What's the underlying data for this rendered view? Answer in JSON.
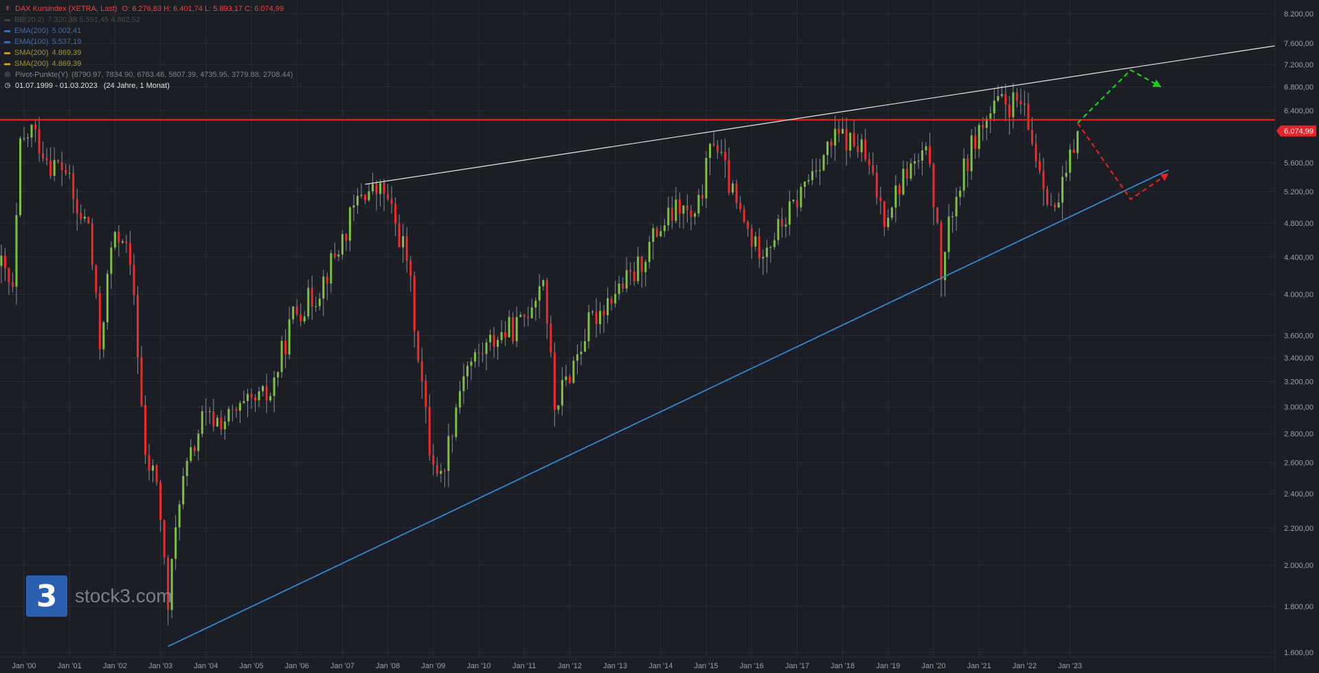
{
  "header": {
    "title": "DAX Kursindex (XETRA, Last)",
    "ohlc": "O: 6.276,83  H: 6.401,74  L: 5.893,17  C: 6.074,99",
    "indicators": [
      {
        "label": "BB(20,2)",
        "values": "7.320,38  5.591,45  4.862,52",
        "color": "#6e6e6e"
      },
      {
        "label": "EMA(200)",
        "values": "5.002,41",
        "color": "#3b6fb0"
      },
      {
        "label": "EMA(100)",
        "values": "5.537,19",
        "color": "#3b6fb0"
      },
      {
        "label": "SMA(200)",
        "values": "4.869,39",
        "color": "#b8a020"
      },
      {
        "label": "SMA(200)",
        "values": "4.869,39",
        "color": "#b8a020"
      }
    ],
    "pivot": {
      "label": "Pivot-Punkte(Y)",
      "values": "(8790.97,  7834.90,  6763.46,  5807.39,  4735.95,  3779.88,  2708.44)"
    },
    "range": "01.07.1999 - 01.03.2023",
    "range_note": "(24 Jahre, 1 Monat)"
  },
  "logo": {
    "mark": "3",
    "text": "stock3.com"
  },
  "chart_data": {
    "type": "candlestick",
    "instrument": "DAX Kursindex (XETRA, Last)",
    "interval": "monthly",
    "yscale": "log",
    "ylim": [
      1560,
      8400
    ],
    "xlim": [
      "1999-07",
      "2023-03"
    ],
    "y_ticks": [
      "1.600,00",
      "1.800,00",
      "2.000,00",
      "2.200,00",
      "2.400,00",
      "2.600,00",
      "2.800,00",
      "3.000,00",
      "3.200,00",
      "3.400,00",
      "3.600,00",
      "4.000,00",
      "4.400,00",
      "4.800,00",
      "5.200,00",
      "5.600,00",
      "6.400,00",
      "6.800,00",
      "7.200,00",
      "7.600,00",
      "8.200,00"
    ],
    "y_tick_values": [
      1600,
      1800,
      2000,
      2200,
      2400,
      2600,
      2800,
      3000,
      3200,
      3400,
      3600,
      4000,
      4400,
      4800,
      5200,
      5600,
      6400,
      6800,
      7200,
      7600,
      8200
    ],
    "x_ticks": [
      "Jan '00",
      "Jan '01",
      "Jan '02",
      "Jan '03",
      "Jan '04",
      "Jan '05",
      "Jan '06",
      "Jan '07",
      "Jan '08",
      "Jan '09",
      "Jan '10",
      "Jan '11",
      "Jan '12",
      "Jan '13",
      "Jan '14",
      "Jan '15",
      "Jan '16",
      "Jan '17",
      "Jan '18",
      "Jan '19",
      "Jan '20",
      "Jan '21",
      "Jan '22",
      "Jan '23"
    ],
    "last_price_label": "6.074,99",
    "last_price": 6074.99,
    "series_points": [
      [
        "1999-07",
        4300
      ],
      [
        "1999-10",
        4000
      ],
      [
        "1999-12",
        5800
      ],
      [
        "2000-03",
        6100
      ],
      [
        "2000-08",
        5600
      ],
      [
        "2000-12",
        5500
      ],
      [
        "2001-03",
        4900
      ],
      [
        "2001-06",
        4800
      ],
      [
        "2001-09",
        3500
      ],
      [
        "2001-12",
        4500
      ],
      [
        "2002-03",
        4700
      ],
      [
        "2002-06",
        4000
      ],
      [
        "2002-09",
        2600
      ],
      [
        "2002-12",
        2500
      ],
      [
        "2003-03",
        1800
      ],
      [
        "2003-06",
        2400
      ],
      [
        "2003-12",
        2900
      ],
      [
        "2004-06",
        2900
      ],
      [
        "2004-12",
        3000
      ],
      [
        "2005-06",
        3100
      ],
      [
        "2005-12",
        3800
      ],
      [
        "2006-06",
        4000
      ],
      [
        "2006-12",
        4500
      ],
      [
        "2007-06",
        5200
      ],
      [
        "2007-12",
        5200
      ],
      [
        "2008-06",
        4400
      ],
      [
        "2008-12",
        2700
      ],
      [
        "2009-03",
        2500
      ],
      [
        "2009-09",
        3300
      ],
      [
        "2010-06",
        3600
      ],
      [
        "2010-12",
        3700
      ],
      [
        "2011-06",
        4200
      ],
      [
        "2011-09",
        3000
      ],
      [
        "2011-12",
        3200
      ],
      [
        "2012-06",
        3700
      ],
      [
        "2012-12",
        4000
      ],
      [
        "2013-06",
        4200
      ],
      [
        "2013-12",
        4700
      ],
      [
        "2014-06",
        5000
      ],
      [
        "2014-10",
        4800
      ],
      [
        "2015-03",
        6000
      ],
      [
        "2015-09",
        5000
      ],
      [
        "2016-02",
        4500
      ],
      [
        "2016-06",
        4600
      ],
      [
        "2016-12",
        5000
      ],
      [
        "2017-06",
        5600
      ],
      [
        "2017-12",
        6000
      ],
      [
        "2018-06",
        5800
      ],
      [
        "2018-12",
        4900
      ],
      [
        "2019-06",
        5500
      ],
      [
        "2019-12",
        5700
      ],
      [
        "2020-03",
        4200
      ],
      [
        "2020-06",
        5000
      ],
      [
        "2020-12",
        6000
      ],
      [
        "2021-06",
        6500
      ],
      [
        "2021-12",
        6500
      ],
      [
        "2022-03",
        5900
      ],
      [
        "2022-09",
        4900
      ],
      [
        "2022-12",
        5400
      ],
      [
        "2023-03",
        6075
      ]
    ],
    "annotations": {
      "horizontal_resistance": 6250,
      "upper_trendline": {
        "from": [
          "2007-07",
          5300
        ],
        "to": [
          "2028-01",
          7620
        ]
      },
      "lower_trendline": {
        "from": [
          "2003-03",
          1625
        ],
        "to": [
          "2025-03",
          5500
        ]
      },
      "scenario_up": {
        "path": [
          [
            "2023-03",
            6200
          ],
          [
            "2024-05",
            7100
          ],
          [
            "2025-01",
            6800
          ]
        ]
      },
      "scenario_down": {
        "path": [
          [
            "2023-03",
            6200
          ],
          [
            "2024-05",
            5100
          ],
          [
            "2025-03",
            5450
          ]
        ]
      }
    },
    "colors": {
      "up": "#7dc242",
      "down": "#f02a2a",
      "resistance": "#ff2020",
      "lower_trend": "#2e8bd0",
      "upper_trend": "#e8e8e8",
      "grid": "#2a2e36",
      "scenario_up": "#22cc22",
      "scenario_down": "#e82020"
    }
  }
}
